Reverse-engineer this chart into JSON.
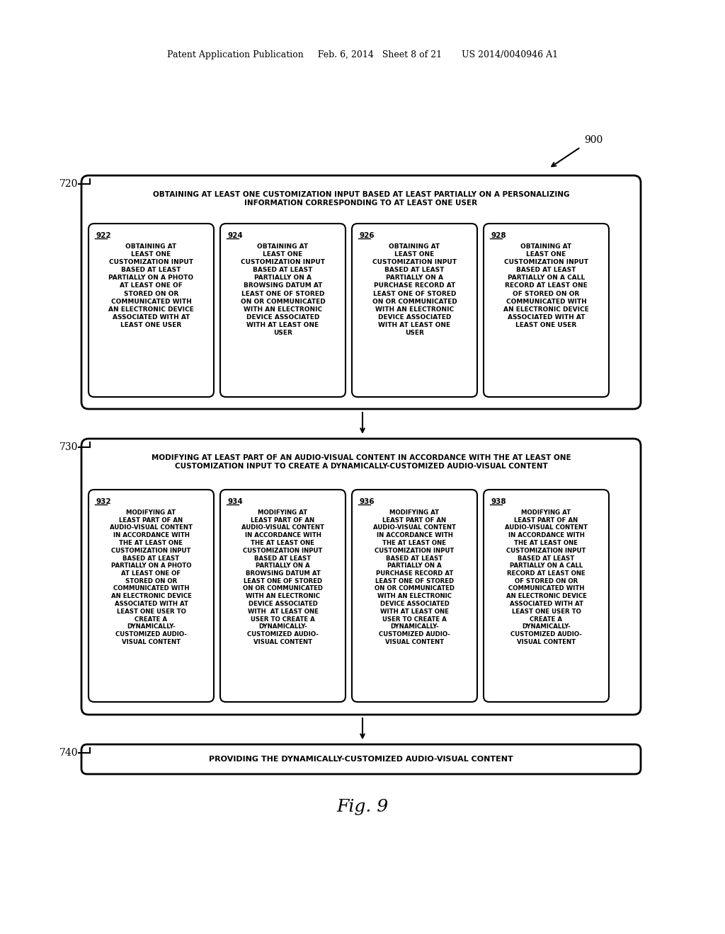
{
  "bg_color": "#ffffff",
  "header_text": "Patent Application Publication     Feb. 6, 2014   Sheet 8 of 21       US 2014/0040946 A1",
  "fig_label": "Fig. 9",
  "ref_900": "900",
  "ref_720": "720",
  "ref_730": "730",
  "ref_740": "740",
  "box720_title": "OBTAINING AT LEAST ONE CUSTOMIZATION INPUT BASED AT LEAST PARTIALLY ON A PERSONALIZING\nINFORMATION CORRESPONDING TO AT LEAST ONE USER",
  "box730_title": "MODIFYING AT LEAST PART OF AN AUDIO-VISUAL CONTENT IN ACCORDANCE WITH THE AT LEAST ONE\nCUSTOMIZATION INPUT TO CREATE A DYNAMICALLY-CUSTOMIZED AUDIO-VISUAL CONTENT",
  "box740_title": "PROVIDING THE DYNAMICALLY-CUSTOMIZED AUDIO-VISUAL CONTENT",
  "sub_boxes_720": [
    {
      "num": "922",
      "text": "OBTAINING AT\nLEAST ONE\nCUSTOMIZATION INPUT\nBASED AT LEAST\nPARTIALLY ON A PHOTO\nAT LEAST ONE OF\nSTORED ON OR\nCOMMUNICATED WITH\nAN ELECTRONIC DEVICE\nASSOCIATED WITH AT\nLEAST ONE USER"
    },
    {
      "num": "924",
      "text": "OBTAINING AT\nLEAST ONE\nCUSTOMIZATION INPUT\nBASED AT LEAST\nPARTIALLY ON A\nBROWSING DATUM AT\nLEAST ONE OF STORED\nON OR COMMUNICATED\nWITH AN ELECTRONIC\nDEVICE ASSOCIATED\nWITH AT LEAST ONE\nUSER"
    },
    {
      "num": "926",
      "text": "OBTAINING AT\nLEAST ONE\nCUSTOMIZATION INPUT\nBASED AT LEAST\nPARTIALLY ON A\nPURCHASE RECORD AT\nLEAST ONE OF STORED\nON OR COMMUNICATED\nWITH AN ELECTRONIC\nDEVICE ASSOCIATED\nWITH AT LEAST ONE\nUSER"
    },
    {
      "num": "928",
      "text": "OBTAINING AT\nLEAST ONE\nCUSTOMIZATION INPUT\nBASED AT LEAST\nPARTIALLY ON A CALL\nRECORD AT LEAST ONE\nOF STORED ON OR\nCOMMUNICATED WITH\nAN ELECTRONIC DEVICE\nASSOCIATED WITH AT\nLEAST ONE USER"
    }
  ],
  "sub_boxes_730": [
    {
      "num": "932",
      "text": "MODIFYING AT\nLEAST PART OF AN\nAUDIO-VISUAL CONTENT\nIN ACCORDANCE WITH\nTHE AT LEAST ONE\nCUSTOMIZATION INPUT\nBASED AT LEAST\nPARTIALLY ON A PHOTO\nAT LEAST ONE OF\nSTORED ON OR\nCOMMUNICATED WITH\nAN ELECTRONIC DEVICE\nASSOCIATED WITH AT\nLEAST ONE USER TO\nCREATE A\nDYNAMICALLY-\nCUSTOMIZED AUDIO-\nVISUAL CONTENT"
    },
    {
      "num": "934",
      "text": "MODIFYING AT\nLEAST PART OF AN\nAUDIO-VISUAL CONTENT\nIN ACCORDANCE WITH\nTHE AT LEAST ONE\nCUSTOMIZATION INPUT\nBASED AT LEAST\nPARTIALLY ON A\nBROWSING DATUM AT\nLEAST ONE OF STORED\nON OR COMMUNICATED\nWITH AN ELECTRONIC\nDEVICE ASSOCIATED\nWITH  AT LEAST ONE\nUSER TO CREATE A\nDYNAMICALLY-\nCUSTOMIZED AUDIO-\nVISUAL CONTENT"
    },
    {
      "num": "936",
      "text": "MODIFYING AT\nLEAST PART OF AN\nAUDIO-VISUAL CONTENT\nIN ACCORDANCE WITH\nTHE AT LEAST ONE\nCUSTOMIZATION INPUT\nBASED AT LEAST\nPARTIALLY ON A\nPURCHASE RECORD AT\nLEAST ONE OF STORED\nON OR COMMUNICATED\nWITH AN ELECTRONIC\nDEVICE ASSOCIATED\nWITH AT LEAST ONE\nUSER TO CREATE A\nDYNAMICALLY-\nCUSTOMIZED AUDIO-\nVISUAL CONTENT"
    },
    {
      "num": "938",
      "text": "MODIFYING AT\nLEAST PART OF AN\nAUDIO-VISUAL CONTENT\nIN ACCORDANCE WITH\nTHE AT LEAST ONE\nCUSTOMIZATION INPUT\nBASED AT LEAST\nPARTIALLY ON A CALL\nRECORD AT LEAST ONE\nOF STORED ON OR\nCOMMUNICATED WITH\nAN ELECTRONIC DEVICE\nASSOCIATED WITH AT\nLEAST ONE USER TO\nCREATE A\nDYNAMICALLY-\nCUSTOMIZED AUDIO-\nVISUAL CONTENT"
    }
  ]
}
